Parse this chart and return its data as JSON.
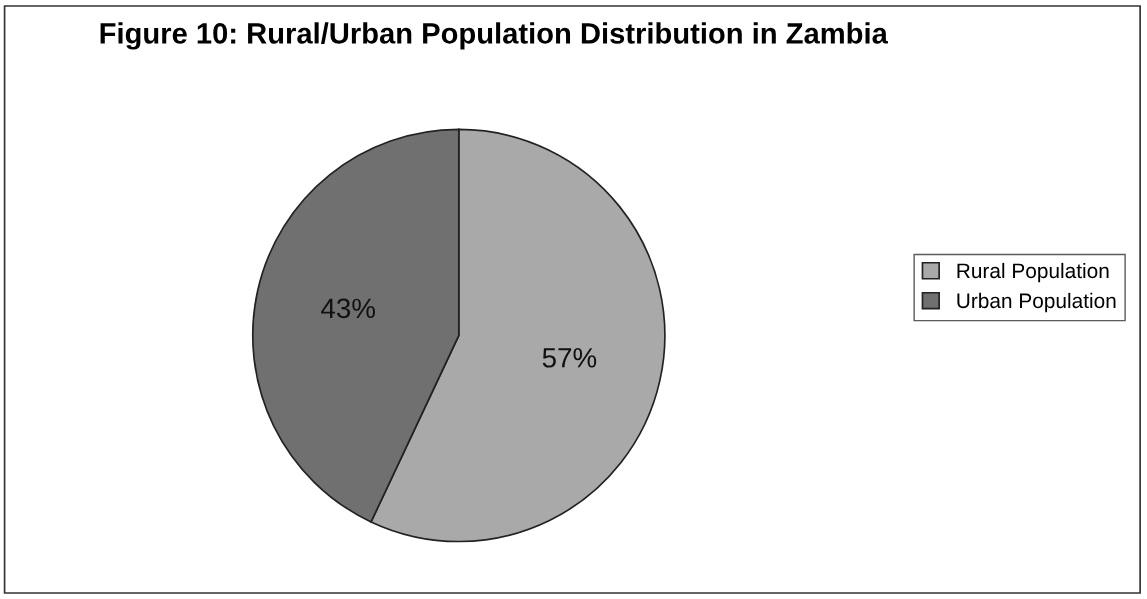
{
  "chart_data": {
    "type": "pie",
    "title": "Figure 10: Rural/Urban Population Distribution in Zambia",
    "categories": [
      "Rural Population",
      "Urban Population"
    ],
    "values": [
      57,
      43
    ],
    "colors": [
      "#a9a9a9",
      "#707070"
    ],
    "value_labels": [
      "57%",
      "43%"
    ],
    "legend": "right"
  }
}
